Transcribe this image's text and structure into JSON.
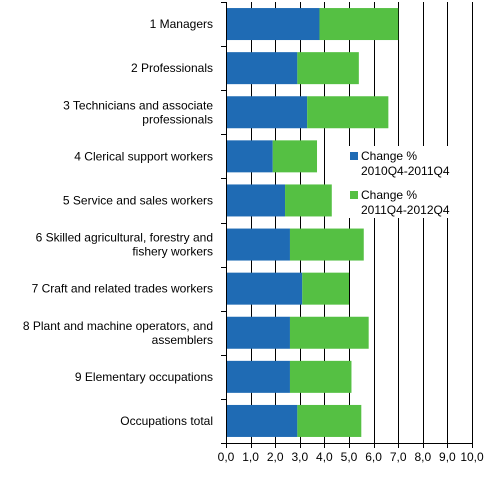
{
  "chart_data": {
    "type": "bar",
    "orientation": "horizontal",
    "stacked": true,
    "categories": [
      [
        "1 Managers"
      ],
      [
        "2 Professionals"
      ],
      [
        "3 Technicians and associate",
        "professionals"
      ],
      [
        "4 Clerical support workers"
      ],
      [
        "5 Service and sales workers"
      ],
      [
        "6 Skilled agricultural, forestry and",
        "fishery workers"
      ],
      [
        "7 Craft and related trades workers"
      ],
      [
        "8 Plant and machine operators, and",
        "assemblers"
      ],
      [
        "9 Elementary occupations"
      ],
      [
        "Occupations total"
      ]
    ],
    "series": [
      {
        "name": [
          "Change %",
          "2010Q4-2011Q4"
        ],
        "color": "#1f6bb4",
        "values": [
          3.8,
          2.9,
          3.3,
          1.9,
          2.4,
          2.6,
          3.1,
          2.6,
          2.6,
          2.9
        ]
      },
      {
        "name": [
          "Change %",
          "2011Q4-2012Q4"
        ],
        "color": "#55c043",
        "values": [
          3.2,
          2.5,
          3.3,
          1.8,
          1.9,
          3.0,
          1.9,
          3.2,
          2.5,
          2.6
        ]
      }
    ],
    "xlim": [
      0,
      10
    ],
    "xticks": [
      "0,0",
      "1,0",
      "2,0",
      "3,0",
      "4,0",
      "5,0",
      "6,0",
      "7,0",
      "8,0",
      "9,0",
      "10,0"
    ],
    "grid": "vertical",
    "legend_position": "right"
  }
}
